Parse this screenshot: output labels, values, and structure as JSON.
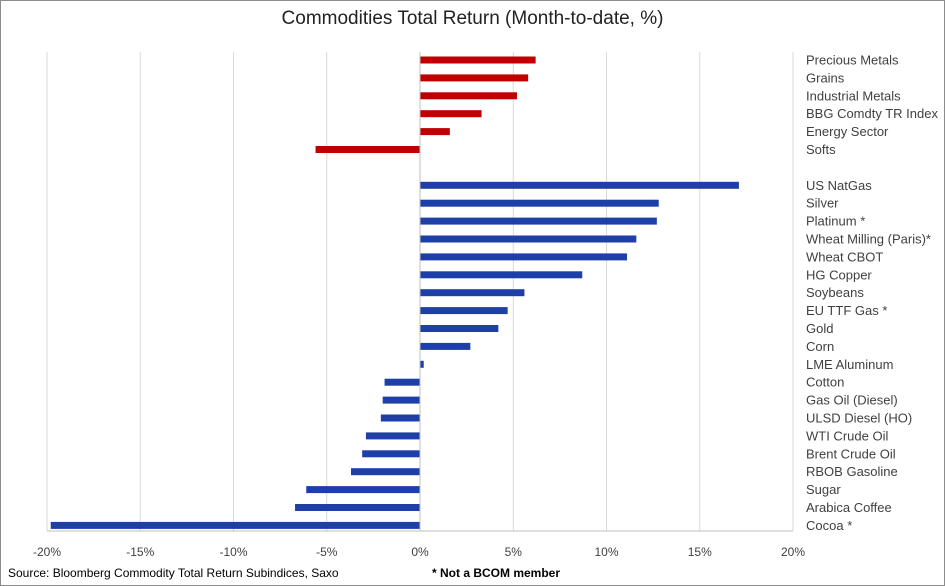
{
  "chart_data": {
    "type": "bar",
    "orientation": "horizontal",
    "title": "Commodities Total Return (Month-to-date, %)",
    "xlabel": "",
    "ylabel": "",
    "xlim": [
      -20,
      20
    ],
    "x_ticks": [
      "-20%",
      "-15%",
      "-10%",
      "-5%",
      "0%",
      "5%",
      "10%",
      "15%",
      "20%"
    ],
    "grid": "vertical",
    "groups": [
      {
        "color": "#c00000",
        "categories": [
          "Precious Metals",
          "Grains",
          "Industrial Metals",
          "BBG Comdty TR Index",
          "Energy Sector",
          "Softs"
        ],
        "values": [
          6.2,
          5.8,
          5.2,
          3.3,
          1.6,
          -5.6
        ]
      },
      {
        "color": "#1f3fa8",
        "categories": [
          "US NatGas",
          "Silver",
          "Platinum *",
          "Wheat Milling (Paris)*",
          "Wheat CBOT",
          "HG Copper",
          "Soybeans",
          "EU TTF Gas *",
          "Gold",
          "Corn",
          "LME Aluminum",
          "Cotton",
          "Gas Oil (Diesel)",
          "ULSD Diesel (HO)",
          "WTI Crude Oil",
          "Brent Crude Oil",
          "RBOB Gasoline",
          "Sugar",
          "Arabica Coffee",
          "Cocoa *"
        ],
        "values": [
          17.1,
          12.8,
          12.7,
          11.6,
          11.1,
          8.7,
          5.6,
          4.7,
          4.2,
          2.7,
          0.2,
          -1.9,
          -2.0,
          -2.1,
          -2.9,
          -3.1,
          -3.7,
          -6.1,
          -6.7,
          -19.8
        ]
      }
    ]
  },
  "footer": {
    "source": "Source: Bloomberg Commodity Total Return Subindices, Saxo",
    "note": "* Not a BCOM member"
  }
}
